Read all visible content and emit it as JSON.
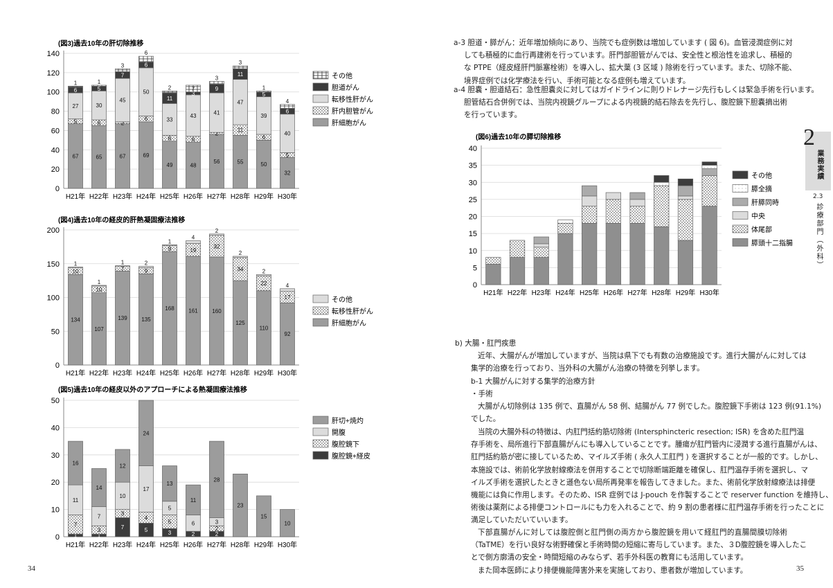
{
  "left_page": {
    "page_number": "34"
  },
  "right_page": {
    "page_number": "35",
    "side_tab": {
      "chapter": "2",
      "chapter_label": "業務実績",
      "section": "2.3",
      "section_label": "診療部門（外科）"
    },
    "paragraphs": [
      {
        "lines": [
          "a-3 胆道・膵がん：近年増加傾向にあり、当院でも症例数は増加しています ( 図 6)。血管浸潤症例に対",
          "しても積極的に血行再建術を行っています。肝門部胆管がんでは、安全性と根治性を追求し、積極的",
          "な PTPE（経皮経肝門脈塞栓術）を導入し、拡大葉 (3 区域 ) 除術を行っています。また、切除不能、",
          "境界症例では化学療法を行い、手術可能となる症例も増えています。"
        ]
      },
      {
        "lines": [
          "a-4 胆嚢・胆道結石：急性胆嚢炎に対してはガイドラインに則りドレナージ先行もしくは緊急手術を行います。",
          "胆管結石合併例では、当院内視鏡グループによる内視鏡的結石除去を先行し、腹腔鏡下胆嚢摘出術",
          "を行っています。"
        ]
      },
      {
        "lines": [
          "b)  大腸・肛門疾患"
        ]
      },
      {
        "lines": [
          "近年、大腸がんが増加していますが、当院は県下でも有数の治療施設です。進行大腸がんに対しては",
          "集学的治療を行っており、当外科の大腸がん治療の特徴を列挙します。"
        ]
      },
      {
        "lines": [
          "b-1 大腸がんに対する集学的治療方針"
        ]
      },
      {
        "lines": [
          "・手術"
        ]
      },
      {
        "lines": [
          "大腸がん切除例は 135 例で、直腸がん 58 例、結腸がん 77 例でした。腹腔鏡下手術は 123 例(91.1%)",
          "でした。"
        ]
      },
      {
        "lines": [
          "当院の大腸外科の特徴は、内肛門括約筋切除術 (Intersphincteric resection; ISR) を含めた肛門温",
          "存手術を、局所進行下部直腸がんにも導入していることです。腫瘍が肛門管内に浸潤する進行直腸がんは、",
          "肛門括約筋が密に接しているため、マイルズ手術 ( 永久人工肛門 ) を選択することが一般的です。しかし、",
          "本施設では、術前化学放射線療法を併用することで切除断端距離を確保し、肛門温存手術を選択し、マ",
          "イルズ手術を選択したときと遜色ない局所再発率を報告してきました。また、術前化学放射線療法は排便",
          "機能には負に作用します。そのため、ISR 症例では J-pouch を作製することで reserver function を維持し、",
          "術後は薬剤による排便コントロールにも力を入れることで、約 9 割の患者様に肛門温存手術を行ったことに",
          "満足していただいていいます。"
        ]
      },
      {
        "lines": [
          "下部直腸がんに対しては腹腔側と肛門側の両方から腹腔鏡を用いて経肛門的直腸間膜切除術",
          "（TaTME）を行い良好な術野確保と手術時間の短縮に寄与しています。また、３D腹腔鏡を導入したこ",
          "とで側方廓清の安全・時間短縮のみならず、若手外科医の教育にも活用しています。"
        ]
      },
      {
        "lines": [
          "また岡本医師により排便機能障害外来を実施しており、患者数が増加しています。"
        ]
      }
    ]
  },
  "chart_data": [
    {
      "type": "bar",
      "stacked": true,
      "title": "(図3)過去10年の肝切除推移",
      "categories": [
        "H21年",
        "H22年",
        "H23年",
        "H24年",
        "H25年",
        "H26年",
        "H27年",
        "H28年",
        "H29年",
        "H30年"
      ],
      "ylim": [
        0,
        140
      ],
      "yticks": [
        0,
        20,
        40,
        60,
        80,
        100,
        120,
        140
      ],
      "grid": true,
      "legend": "right",
      "data_labels": true,
      "series": [
        {
          "name": "肝細胞がん",
          "color": "#9c9c9c",
          "pattern": "solid",
          "values": [
            67,
            65,
            67,
            69,
            49,
            48,
            56,
            55,
            50,
            32
          ]
        },
        {
          "name": "肝内胆管がん",
          "color": "#ffffff",
          "pattern": "dots",
          "values": [
            5,
            6,
            2,
            6,
            6,
            6,
            2,
            11,
            6,
            5
          ]
        },
        {
          "name": "転移性肝がん",
          "color": "#dcdcdc",
          "pattern": "solid",
          "values": [
            27,
            30,
            45,
            50,
            33,
            43,
            41,
            47,
            39,
            40
          ]
        },
        {
          "name": "胆道がん",
          "color": "#3c3c3c",
          "pattern": "solid",
          "values": [
            6,
            5,
            7,
            6,
            11,
            3,
            9,
            11,
            5,
            6
          ]
        },
        {
          "name": "その他",
          "color": "#ffffff",
          "pattern": "grid",
          "values": [
            1,
            1,
            3,
            6,
            2,
            7,
            3,
            3,
            1,
            4
          ]
        }
      ]
    },
    {
      "type": "bar",
      "stacked": true,
      "title": "(図4)過去10年の経皮的肝熱凝固療法推移",
      "categories": [
        "H21年",
        "H22年",
        "H23年",
        "H24年",
        "H25年",
        "H26年",
        "H27年",
        "H28年",
        "H29年",
        "H30年"
      ],
      "ylim": [
        0,
        200
      ],
      "yticks": [
        0,
        50,
        100,
        150,
        200
      ],
      "grid": true,
      "legend": "right",
      "data_labels": true,
      "series": [
        {
          "name": "肝細胞がん",
          "color": "#9c9c9c",
          "pattern": "solid",
          "values": [
            134,
            107,
            139,
            135,
            168,
            161,
            160,
            125,
            110,
            92
          ]
        },
        {
          "name": "転移性肝がん",
          "color": "#ffffff",
          "pattern": "dots",
          "values": [
            10,
            10,
            7,
            9,
            9,
            19,
            32,
            34,
            22,
            17
          ]
        },
        {
          "name": "その他",
          "color": "#dcdcdc",
          "pattern": "solid",
          "values": [
            1,
            1,
            1,
            2,
            1,
            4,
            2,
            2,
            2,
            4
          ]
        }
      ]
    },
    {
      "type": "bar",
      "stacked": true,
      "title": "(図5)過去10年の経皮以外のアプローチによる熱凝固療法推移",
      "categories": [
        "H21年",
        "H22年",
        "H23年",
        "H24年",
        "H25年",
        "H26年",
        "H27年",
        "H28年",
        "H29年",
        "H30年"
      ],
      "ylim": [
        0,
        50
      ],
      "yticks": [
        0,
        10,
        20,
        30,
        40,
        50
      ],
      "grid": true,
      "legend": "right",
      "data_labels": true,
      "series": [
        {
          "name": "腹腔鏡+経皮",
          "color": "#3c3c3c",
          "pattern": "solid",
          "values": [
            1,
            1,
            7,
            5,
            3,
            2,
            2,
            0,
            0,
            0
          ]
        },
        {
          "name": "腹腔鏡下",
          "color": "#ffffff",
          "pattern": "dots",
          "values": [
            7,
            3,
            3,
            4,
            5,
            0,
            2,
            0,
            0,
            0
          ]
        },
        {
          "name": "開腹",
          "color": "#dcdcdc",
          "pattern": "solid",
          "values": [
            11,
            7,
            10,
            17,
            5,
            6,
            3,
            0,
            0,
            0
          ]
        },
        {
          "name": "肝切+焼灼",
          "color": "#9c9c9c",
          "pattern": "solid",
          "values": [
            16,
            14,
            12,
            24,
            13,
            11,
            28,
            23,
            15,
            10
          ]
        }
      ]
    },
    {
      "type": "bar",
      "stacked": true,
      "title": "(図6)過去10年の膵切除推移",
      "categories": [
        "H21年",
        "H22年",
        "H23年",
        "H24年",
        "H25年",
        "H26年",
        "H27年",
        "H28年",
        "H29年",
        "H30年"
      ],
      "ylim": [
        0,
        40
      ],
      "yticks": [
        0,
        5,
        10,
        15,
        20,
        25,
        30,
        35,
        40
      ],
      "grid": true,
      "legend": "right",
      "data_labels": false,
      "series": [
        {
          "name": "膵頭十二指腸",
          "color": "#8f8f8f",
          "pattern": "solid",
          "values": [
            6,
            8,
            8,
            15,
            18,
            18,
            18,
            17,
            13,
            23
          ]
        },
        {
          "name": "体尾部",
          "color": "#ffffff",
          "pattern": "dots",
          "values": [
            2,
            5,
            3,
            3,
            5,
            7,
            5,
            12,
            12,
            9
          ]
        },
        {
          "name": "中央",
          "color": "#dcdcdc",
          "pattern": "solid",
          "values": [
            0,
            0,
            1,
            0,
            3,
            2,
            2,
            0,
            1,
            0
          ]
        },
        {
          "name": "肝膵同時",
          "color": "#ababab",
          "pattern": "solid",
          "values": [
            0,
            0,
            2,
            0,
            3,
            0,
            2,
            0,
            3,
            2
          ]
        },
        {
          "name": "膵全摘",
          "color": "#ffffff",
          "pattern": "sparse-dots",
          "values": [
            0,
            0,
            0,
            1,
            0,
            0,
            0,
            1,
            0,
            1
          ]
        },
        {
          "name": "その他",
          "color": "#3c3c3c",
          "pattern": "solid",
          "values": [
            0,
            0,
            0,
            0,
            0,
            0,
            0,
            2,
            2,
            1
          ]
        }
      ]
    }
  ]
}
